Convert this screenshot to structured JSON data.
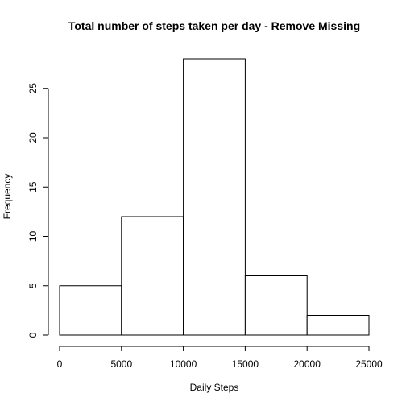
{
  "chart_data": {
    "type": "bar",
    "title": "Total number of steps taken per day - Remove Missing",
    "xlabel": "Daily Steps",
    "ylabel": "Frequency",
    "bins": [
      {
        "start": 0,
        "end": 5000,
        "count": 5
      },
      {
        "start": 5000,
        "end": 10000,
        "count": 12
      },
      {
        "start": 10000,
        "end": 15000,
        "count": 28
      },
      {
        "start": 15000,
        "end": 20000,
        "count": 6
      },
      {
        "start": 20000,
        "end": 25000,
        "count": 2
      }
    ],
    "x_ticks": [
      "0",
      "5000",
      "10000",
      "15000",
      "20000",
      "25000"
    ],
    "y_ticks": [
      "0",
      "5",
      "10",
      "15",
      "20",
      "25"
    ],
    "xlim": [
      0,
      25000
    ],
    "ylim": [
      0,
      28
    ],
    "grid": false,
    "legend": "none",
    "bar_fill": "#ffffff",
    "bar_stroke": "#000000"
  }
}
